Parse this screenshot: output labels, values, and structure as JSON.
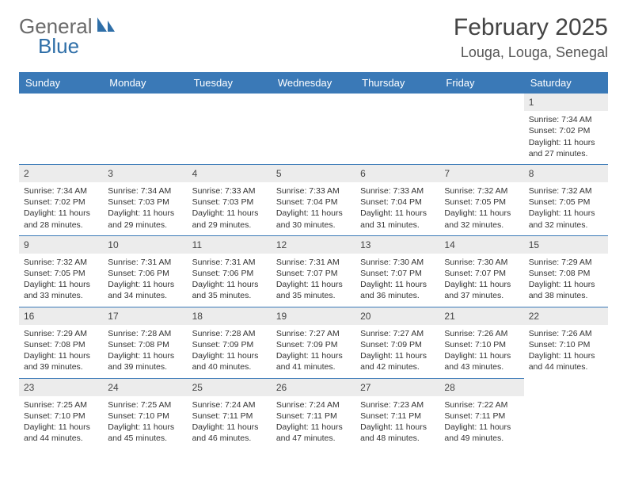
{
  "brand": {
    "general": "General",
    "blue": "Blue"
  },
  "title": "February 2025",
  "location": "Louga, Louga, Senegal",
  "colors": {
    "header_bg": "#3a79b7",
    "header_text": "#ffffff",
    "daybar_bg": "#ececec",
    "row_border": "#3a79b7",
    "body_text": "#333333",
    "logo_gray": "#6a6a6a",
    "logo_blue": "#2f6fa8"
  },
  "weekdays": [
    "Sunday",
    "Monday",
    "Tuesday",
    "Wednesday",
    "Thursday",
    "Friday",
    "Saturday"
  ],
  "layout": {
    "columns": 7,
    "rows": 5,
    "cell_font_size_pt": 8,
    "weekday_font_size_pt": 10,
    "title_font_size_pt": 22
  },
  "weeks": [
    [
      null,
      null,
      null,
      null,
      null,
      null,
      {
        "n": "1",
        "sunrise": "Sunrise: 7:34 AM",
        "sunset": "Sunset: 7:02 PM",
        "daylight": "Daylight: 11 hours and 27 minutes."
      }
    ],
    [
      {
        "n": "2",
        "sunrise": "Sunrise: 7:34 AM",
        "sunset": "Sunset: 7:02 PM",
        "daylight": "Daylight: 11 hours and 28 minutes."
      },
      {
        "n": "3",
        "sunrise": "Sunrise: 7:34 AM",
        "sunset": "Sunset: 7:03 PM",
        "daylight": "Daylight: 11 hours and 29 minutes."
      },
      {
        "n": "4",
        "sunrise": "Sunrise: 7:33 AM",
        "sunset": "Sunset: 7:03 PM",
        "daylight": "Daylight: 11 hours and 29 minutes."
      },
      {
        "n": "5",
        "sunrise": "Sunrise: 7:33 AM",
        "sunset": "Sunset: 7:04 PM",
        "daylight": "Daylight: 11 hours and 30 minutes."
      },
      {
        "n": "6",
        "sunrise": "Sunrise: 7:33 AM",
        "sunset": "Sunset: 7:04 PM",
        "daylight": "Daylight: 11 hours and 31 minutes."
      },
      {
        "n": "7",
        "sunrise": "Sunrise: 7:32 AM",
        "sunset": "Sunset: 7:05 PM",
        "daylight": "Daylight: 11 hours and 32 minutes."
      },
      {
        "n": "8",
        "sunrise": "Sunrise: 7:32 AM",
        "sunset": "Sunset: 7:05 PM",
        "daylight": "Daylight: 11 hours and 32 minutes."
      }
    ],
    [
      {
        "n": "9",
        "sunrise": "Sunrise: 7:32 AM",
        "sunset": "Sunset: 7:05 PM",
        "daylight": "Daylight: 11 hours and 33 minutes."
      },
      {
        "n": "10",
        "sunrise": "Sunrise: 7:31 AM",
        "sunset": "Sunset: 7:06 PM",
        "daylight": "Daylight: 11 hours and 34 minutes."
      },
      {
        "n": "11",
        "sunrise": "Sunrise: 7:31 AM",
        "sunset": "Sunset: 7:06 PM",
        "daylight": "Daylight: 11 hours and 35 minutes."
      },
      {
        "n": "12",
        "sunrise": "Sunrise: 7:31 AM",
        "sunset": "Sunset: 7:07 PM",
        "daylight": "Daylight: 11 hours and 35 minutes."
      },
      {
        "n": "13",
        "sunrise": "Sunrise: 7:30 AM",
        "sunset": "Sunset: 7:07 PM",
        "daylight": "Daylight: 11 hours and 36 minutes."
      },
      {
        "n": "14",
        "sunrise": "Sunrise: 7:30 AM",
        "sunset": "Sunset: 7:07 PM",
        "daylight": "Daylight: 11 hours and 37 minutes."
      },
      {
        "n": "15",
        "sunrise": "Sunrise: 7:29 AM",
        "sunset": "Sunset: 7:08 PM",
        "daylight": "Daylight: 11 hours and 38 minutes."
      }
    ],
    [
      {
        "n": "16",
        "sunrise": "Sunrise: 7:29 AM",
        "sunset": "Sunset: 7:08 PM",
        "daylight": "Daylight: 11 hours and 39 minutes."
      },
      {
        "n": "17",
        "sunrise": "Sunrise: 7:28 AM",
        "sunset": "Sunset: 7:08 PM",
        "daylight": "Daylight: 11 hours and 39 minutes."
      },
      {
        "n": "18",
        "sunrise": "Sunrise: 7:28 AM",
        "sunset": "Sunset: 7:09 PM",
        "daylight": "Daylight: 11 hours and 40 minutes."
      },
      {
        "n": "19",
        "sunrise": "Sunrise: 7:27 AM",
        "sunset": "Sunset: 7:09 PM",
        "daylight": "Daylight: 11 hours and 41 minutes."
      },
      {
        "n": "20",
        "sunrise": "Sunrise: 7:27 AM",
        "sunset": "Sunset: 7:09 PM",
        "daylight": "Daylight: 11 hours and 42 minutes."
      },
      {
        "n": "21",
        "sunrise": "Sunrise: 7:26 AM",
        "sunset": "Sunset: 7:10 PM",
        "daylight": "Daylight: 11 hours and 43 minutes."
      },
      {
        "n": "22",
        "sunrise": "Sunrise: 7:26 AM",
        "sunset": "Sunset: 7:10 PM",
        "daylight": "Daylight: 11 hours and 44 minutes."
      }
    ],
    [
      {
        "n": "23",
        "sunrise": "Sunrise: 7:25 AM",
        "sunset": "Sunset: 7:10 PM",
        "daylight": "Daylight: 11 hours and 44 minutes."
      },
      {
        "n": "24",
        "sunrise": "Sunrise: 7:25 AM",
        "sunset": "Sunset: 7:10 PM",
        "daylight": "Daylight: 11 hours and 45 minutes."
      },
      {
        "n": "25",
        "sunrise": "Sunrise: 7:24 AM",
        "sunset": "Sunset: 7:11 PM",
        "daylight": "Daylight: 11 hours and 46 minutes."
      },
      {
        "n": "26",
        "sunrise": "Sunrise: 7:24 AM",
        "sunset": "Sunset: 7:11 PM",
        "daylight": "Daylight: 11 hours and 47 minutes."
      },
      {
        "n": "27",
        "sunrise": "Sunrise: 7:23 AM",
        "sunset": "Sunset: 7:11 PM",
        "daylight": "Daylight: 11 hours and 48 minutes."
      },
      {
        "n": "28",
        "sunrise": "Sunrise: 7:22 AM",
        "sunset": "Sunset: 7:11 PM",
        "daylight": "Daylight: 11 hours and 49 minutes."
      },
      null
    ]
  ]
}
